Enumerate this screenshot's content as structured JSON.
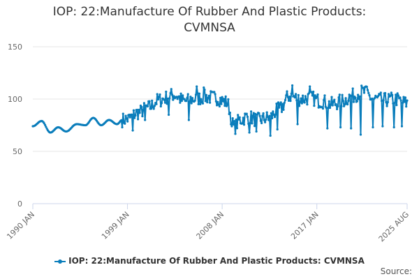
{
  "chart_data": {
    "type": "line",
    "title_lines": [
      "IOP: 22:Manufacture Of Rubber And Plastic Products:",
      "CVMNSA"
    ],
    "xlabel": "",
    "ylabel": "",
    "x_ticks": [
      "1990 JAN",
      "1999 JAN",
      "2008 JAN",
      "2017 JAN",
      "2025 AUG"
    ],
    "x_range": [
      "1990-01",
      "2025-08"
    ],
    "y_ticks": [
      0,
      50,
      100,
      150
    ],
    "ylim": [
      0,
      150
    ],
    "grid": "horizontal",
    "legend_position": "bottom-center",
    "series_color": "#0a7dbb",
    "series": [
      {
        "name": "IOP: 22:Manufacture Of Rubber And Plastic Products: CVMNSA",
        "anchors": [
          {
            "x": "1990-01",
            "y": 74
          },
          {
            "x": "1990-11",
            "y": 79
          },
          {
            "x": "1991-09",
            "y": 68
          },
          {
            "x": "1992-06",
            "y": 73
          },
          {
            "x": "1993-03",
            "y": 69
          },
          {
            "x": "1994-03",
            "y": 76
          },
          {
            "x": "1995-01",
            "y": 75
          },
          {
            "x": "1995-10",
            "y": 82
          },
          {
            "x": "1996-07",
            "y": 75
          },
          {
            "x": "1997-04",
            "y": 80
          },
          {
            "x": "1998-01",
            "y": 76
          },
          {
            "x": "1998-07",
            "y": 80
          },
          {
            "x": "1999-01",
            "y": 81
          },
          {
            "x": "2000-01",
            "y": 87
          },
          {
            "x": "2001-01",
            "y": 92
          },
          {
            "x": "2002-01",
            "y": 99
          },
          {
            "x": "2003-06",
            "y": 104
          },
          {
            "x": "2004-06",
            "y": 98
          },
          {
            "x": "2005-06",
            "y": 100
          },
          {
            "x": "2006-06",
            "y": 102
          },
          {
            "x": "2007-06",
            "y": 101
          },
          {
            "x": "2008-06",
            "y": 97
          },
          {
            "x": "2009-03",
            "y": 73
          },
          {
            "x": "2009-09",
            "y": 80
          },
          {
            "x": "2010-06",
            "y": 83
          },
          {
            "x": "2011-06",
            "y": 80
          },
          {
            "x": "2012-06",
            "y": 82
          },
          {
            "x": "2013-06",
            "y": 90
          },
          {
            "x": "2014-06",
            "y": 103
          },
          {
            "x": "2015-06",
            "y": 100
          },
          {
            "x": "2016-06",
            "y": 101
          },
          {
            "x": "2017-06",
            "y": 98
          },
          {
            "x": "2018-06",
            "y": 95
          },
          {
            "x": "2019-06",
            "y": 98
          },
          {
            "x": "2020-05",
            "y": 103
          },
          {
            "x": "2021-06",
            "y": 107
          },
          {
            "x": "2022-06",
            "y": 100
          },
          {
            "x": "2023-06",
            "y": 99
          },
          {
            "x": "2024-06",
            "y": 100
          },
          {
            "x": "2025-08",
            "y": 96
          }
        ],
        "noisy_from": "1998-07",
        "noise_amplitude": 7,
        "dips": [
          {
            "x": "1999-07",
            "y": 70
          },
          {
            "x": "2000-09",
            "y": 80
          },
          {
            "x": "2002-12",
            "y": 85
          },
          {
            "x": "2004-11",
            "y": 80
          },
          {
            "x": "2005-08",
            "y": 112
          },
          {
            "x": "2006-04",
            "y": 111
          },
          {
            "x": "2008-12",
            "y": 74
          },
          {
            "x": "2010-08",
            "y": 68
          },
          {
            "x": "2011-04",
            "y": 69
          },
          {
            "x": "2012-08",
            "y": 65
          },
          {
            "x": "2013-04",
            "y": 71
          },
          {
            "x": "2014-09",
            "y": 113
          },
          {
            "x": "2015-03",
            "y": 76
          },
          {
            "x": "2016-05",
            "y": 112
          },
          {
            "x": "2018-01",
            "y": 72
          },
          {
            "x": "2019-04",
            "y": 73
          },
          {
            "x": "2020-04",
            "y": 72
          },
          {
            "x": "2021-03",
            "y": 66
          },
          {
            "x": "2021-09",
            "y": 112
          },
          {
            "x": "2022-05",
            "y": 73
          },
          {
            "x": "2023-04",
            "y": 74
          },
          {
            "x": "2024-05",
            "y": 73
          },
          {
            "x": "2025-02",
            "y": 74
          }
        ]
      }
    ]
  },
  "legend": {
    "label": "IOP: 22:Manufacture Of Rubber And Plastic Products: CVMNSA"
  },
  "credits": {
    "text": "Source:"
  }
}
